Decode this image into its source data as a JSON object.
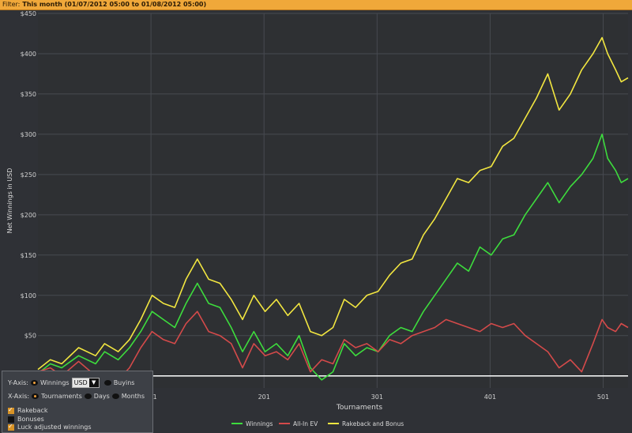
{
  "filter": {
    "label": "Filter:",
    "value": "This month (01/07/2012 05:00 to 01/08/2012 05:00)"
  },
  "controls": {
    "y_axis_label": "Y-Axis:",
    "y_opt_winnings": "Winnings",
    "currency_select": "USD",
    "y_opt_buyins": "Buyins",
    "x_axis_label": "X-Axis:",
    "x_opt_tournaments": "Tournaments",
    "x_opt_days": "Days",
    "x_opt_months": "Months",
    "rakeback": "Rakeback",
    "bonuses": "Bonuses",
    "luck_adjusted": "Luck adjusted winnings"
  },
  "colors": {
    "winnings": "#3ddc3d",
    "allin_ev": "#d44a4a",
    "rakeback_bonus": "#f2e640",
    "zero_line": "#ffffff",
    "accent": "#f0a83a"
  },
  "chart_data": {
    "type": "line",
    "xlabel": "Tournaments",
    "ylabel": "Net Winnings in USD",
    "xlim": [
      1,
      523
    ],
    "ylim": [
      -15,
      450
    ],
    "xticks": [
      101,
      201,
      301,
      401,
      501
    ],
    "yticks": [
      0,
      50,
      100,
      150,
      200,
      250,
      300,
      350,
      400,
      450
    ],
    "ytick_labels": [
      "$0",
      "$50",
      "$100",
      "$150",
      "$200",
      "$250",
      "$300",
      "$350",
      "$400",
      "$450"
    ],
    "grid": true,
    "legend": "bottom-center",
    "series": [
      {
        "name": "Winnings",
        "x": [
          1,
          12,
          22,
          37,
          52,
          60,
          72,
          82,
          92,
          102,
          112,
          122,
          132,
          142,
          152,
          162,
          172,
          182,
          192,
          202,
          212,
          222,
          232,
          242,
          252,
          262,
          272,
          282,
          292,
          302,
          312,
          322,
          332,
          342,
          352,
          362,
          372,
          382,
          392,
          402,
          412,
          422,
          432,
          442,
          452,
          462,
          472,
          482,
          492,
          500,
          505,
          512,
          517,
          523
        ],
        "y": [
          3,
          15,
          10,
          25,
          15,
          30,
          20,
          35,
          55,
          80,
          70,
          60,
          90,
          115,
          90,
          85,
          60,
          30,
          55,
          30,
          40,
          25,
          50,
          10,
          -5,
          5,
          40,
          25,
          35,
          30,
          50,
          60,
          55,
          80,
          100,
          120,
          140,
          130,
          160,
          150,
          170,
          175,
          200,
          220,
          240,
          215,
          235,
          250,
          270,
          300,
          270,
          255,
          240,
          245
        ]
      },
      {
        "name": "All-In EV",
        "x": [
          1,
          12,
          22,
          37,
          52,
          60,
          72,
          82,
          92,
          102,
          112,
          122,
          132,
          142,
          152,
          162,
          172,
          182,
          192,
          202,
          212,
          222,
          232,
          242,
          252,
          262,
          272,
          282,
          292,
          302,
          312,
          322,
          332,
          342,
          352,
          362,
          372,
          382,
          392,
          402,
          412,
          422,
          432,
          442,
          452,
          462,
          472,
          482,
          492,
          500,
          505,
          512,
          517,
          523
        ],
        "y": [
          5,
          10,
          0,
          18,
          0,
          -8,
          -5,
          10,
          35,
          55,
          45,
          40,
          65,
          80,
          55,
          50,
          40,
          10,
          40,
          25,
          30,
          20,
          40,
          5,
          20,
          15,
          45,
          35,
          40,
          30,
          45,
          40,
          50,
          55,
          60,
          70,
          65,
          60,
          55,
          65,
          60,
          65,
          50,
          40,
          30,
          10,
          20,
          5,
          40,
          70,
          60,
          55,
          65,
          60
        ]
      },
      {
        "name": "Rakeback and Bonus",
        "x": [
          1,
          12,
          22,
          37,
          52,
          60,
          72,
          82,
          92,
          102,
          112,
          122,
          132,
          142,
          152,
          162,
          172,
          182,
          192,
          202,
          212,
          222,
          232,
          242,
          252,
          262,
          272,
          282,
          292,
          302,
          312,
          322,
          332,
          342,
          352,
          362,
          372,
          382,
          392,
          402,
          412,
          422,
          432,
          442,
          452,
          462,
          472,
          482,
          492,
          500,
          505,
          512,
          517,
          523
        ],
        "y": [
          8,
          20,
          15,
          35,
          25,
          40,
          30,
          45,
          70,
          100,
          90,
          85,
          120,
          145,
          120,
          115,
          95,
          70,
          100,
          80,
          95,
          75,
          90,
          55,
          50,
          60,
          95,
          85,
          100,
          105,
          125,
          140,
          145,
          175,
          195,
          220,
          245,
          240,
          255,
          260,
          285,
          295,
          320,
          345,
          375,
          330,
          350,
          380,
          400,
          420,
          400,
          380,
          365,
          370
        ]
      }
    ]
  }
}
